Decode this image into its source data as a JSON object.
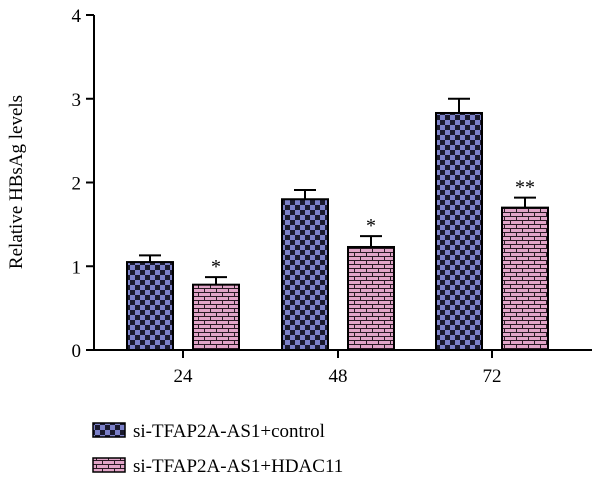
{
  "chart_data": {
    "type": "bar",
    "title": "",
    "xlabel": "",
    "ylabel": "Relative HBsAg levels",
    "categories": [
      "24",
      "48",
      "72"
    ],
    "ylim": [
      0,
      4
    ],
    "yticks": [
      "0",
      "1",
      "2",
      "3",
      "4"
    ],
    "grid": false,
    "legend_position": "bottom-left",
    "series": [
      {
        "name": "si-TFAP2A-AS1+control",
        "values": [
          1.05,
          1.8,
          2.83
        ],
        "errors": [
          0.08,
          0.11,
          0.17
        ],
        "significance": [
          "",
          "",
          ""
        ],
        "pattern": "checkerboard",
        "fill_color": "#7b80c8",
        "pattern_color": "#1a1a2e"
      },
      {
        "name": "si-TFAP2A-AS1+HDAC11",
        "values": [
          0.78,
          1.23,
          1.7
        ],
        "errors": [
          0.09,
          0.13,
          0.12
        ],
        "significance": [
          "*",
          "*",
          "**"
        ],
        "pattern": "brick",
        "fill_color": "#e2a5c8",
        "pattern_color": "#2a1a24"
      }
    ]
  }
}
